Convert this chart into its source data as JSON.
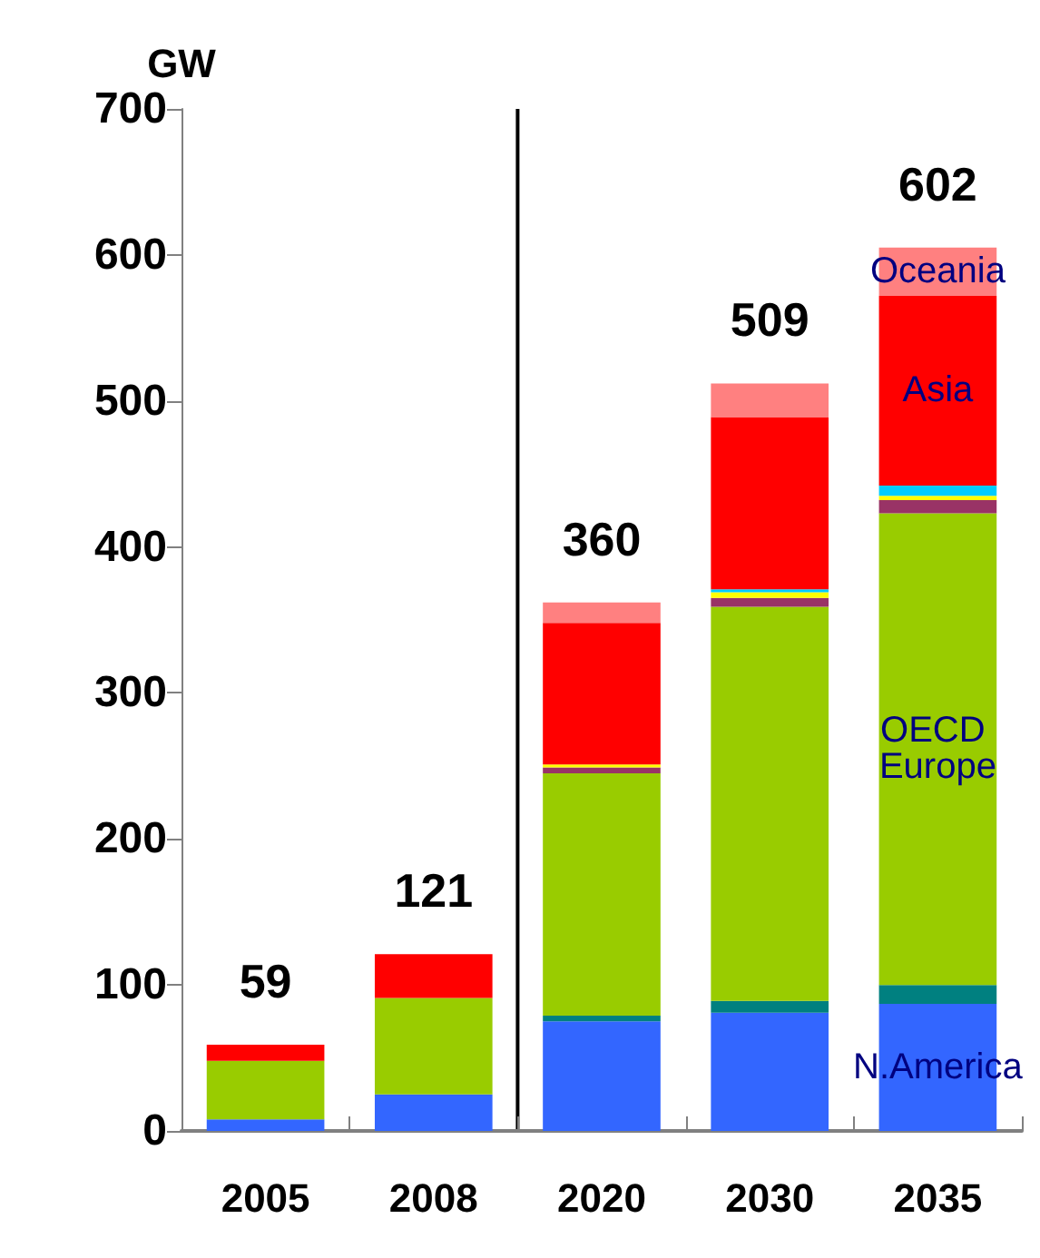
{
  "chart_data": {
    "type": "bar",
    "stacked": true,
    "ylabel": "GW",
    "categories": [
      "2005",
      "2008",
      "2020",
      "2030",
      "2035"
    ],
    "series": [
      {
        "name": "N.America",
        "color": "#3366ff",
        "values": [
          8,
          25,
          75,
          81,
          87
        ]
      },
      {
        "color": "#008080",
        "values": [
          0,
          0,
          4,
          8,
          13
        ]
      },
      {
        "name": "OECD Europe",
        "color": "#99cc00",
        "values": [
          40,
          66,
          166,
          270,
          323
        ]
      },
      {
        "color": "#993366",
        "values": [
          0,
          0,
          4,
          6,
          9
        ]
      },
      {
        "color": "#ffff00",
        "values": [
          0,
          0,
          2,
          4,
          3
        ]
      },
      {
        "color": "#00ccff",
        "values": [
          0,
          0,
          0,
          2,
          7
        ]
      },
      {
        "name": "Asia",
        "color": "#ff0000",
        "values": [
          11,
          30,
          97,
          118,
          130
        ]
      },
      {
        "name": "Oceania",
        "color": "#ff8080",
        "values": [
          0,
          0,
          14,
          23,
          33
        ]
      }
    ],
    "totals": [
      "59",
      "121",
      "360",
      "509",
      "602"
    ],
    "ylim": [
      0,
      700
    ],
    "yticks": [
      0,
      100,
      200,
      300,
      400,
      500,
      600,
      700
    ],
    "ref_lines": [
      {
        "axis": "x",
        "color": "#000000"
      }
    ],
    "grid": false,
    "legend": false
  }
}
